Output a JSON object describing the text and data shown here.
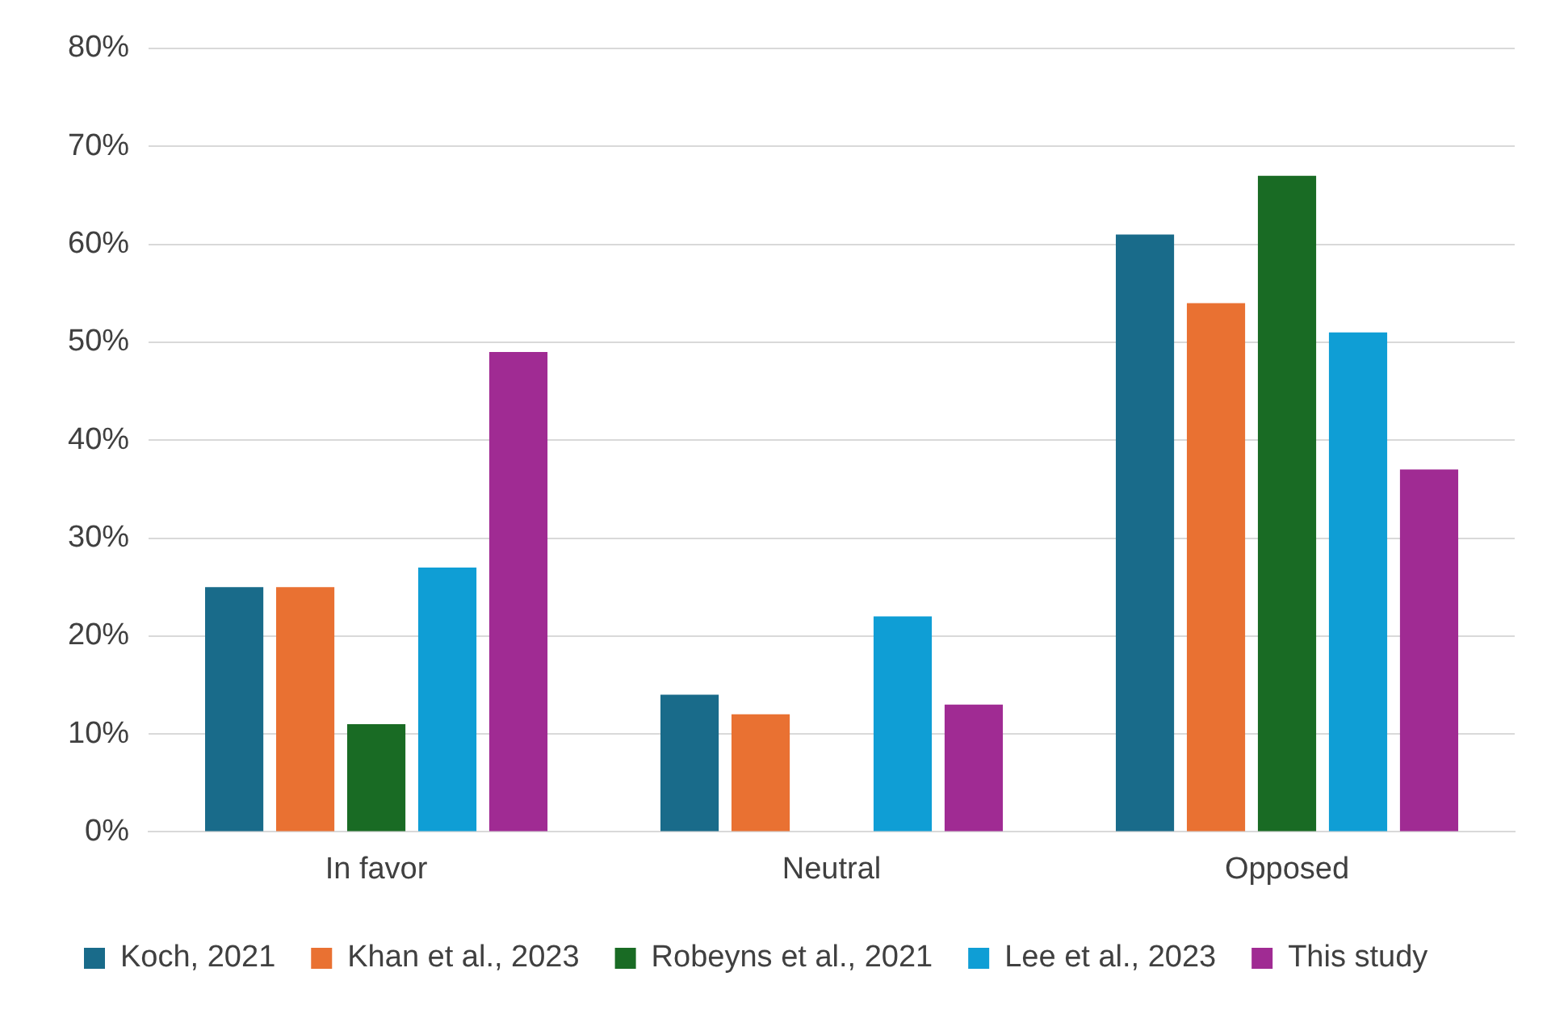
{
  "chart_data": {
    "type": "bar",
    "categories": [
      "In favor",
      "Neutral",
      "Opposed"
    ],
    "series": [
      {
        "name": "Koch, 2021",
        "color": "#196b8a",
        "values": [
          25,
          14,
          61
        ]
      },
      {
        "name": "Khan et al., 2023",
        "color": "#e97132",
        "values": [
          25,
          12,
          54
        ]
      },
      {
        "name": "Robeyns et al., 2021",
        "color": "#196b24",
        "values": [
          11,
          0,
          67
        ]
      },
      {
        "name": "Lee et al., 2023",
        "color": "#0f9ed5",
        "values": [
          27,
          22,
          51
        ]
      },
      {
        "name": "This study",
        "color": "#a02b93",
        "values": [
          49,
          13,
          37
        ]
      }
    ],
    "ylim": [
      0,
      80
    ],
    "yticks": [
      {
        "value": 0,
        "label": "0%"
      },
      {
        "value": 10,
        "label": "10%"
      },
      {
        "value": 20,
        "label": "20%"
      },
      {
        "value": 30,
        "label": "30%"
      },
      {
        "value": 40,
        "label": "40%"
      },
      {
        "value": 50,
        "label": "50%"
      },
      {
        "value": 60,
        "label": "60%"
      },
      {
        "value": 70,
        "label": "70%"
      },
      {
        "value": 80,
        "label": "80%"
      }
    ],
    "grid": "y",
    "legend": "bottom"
  }
}
